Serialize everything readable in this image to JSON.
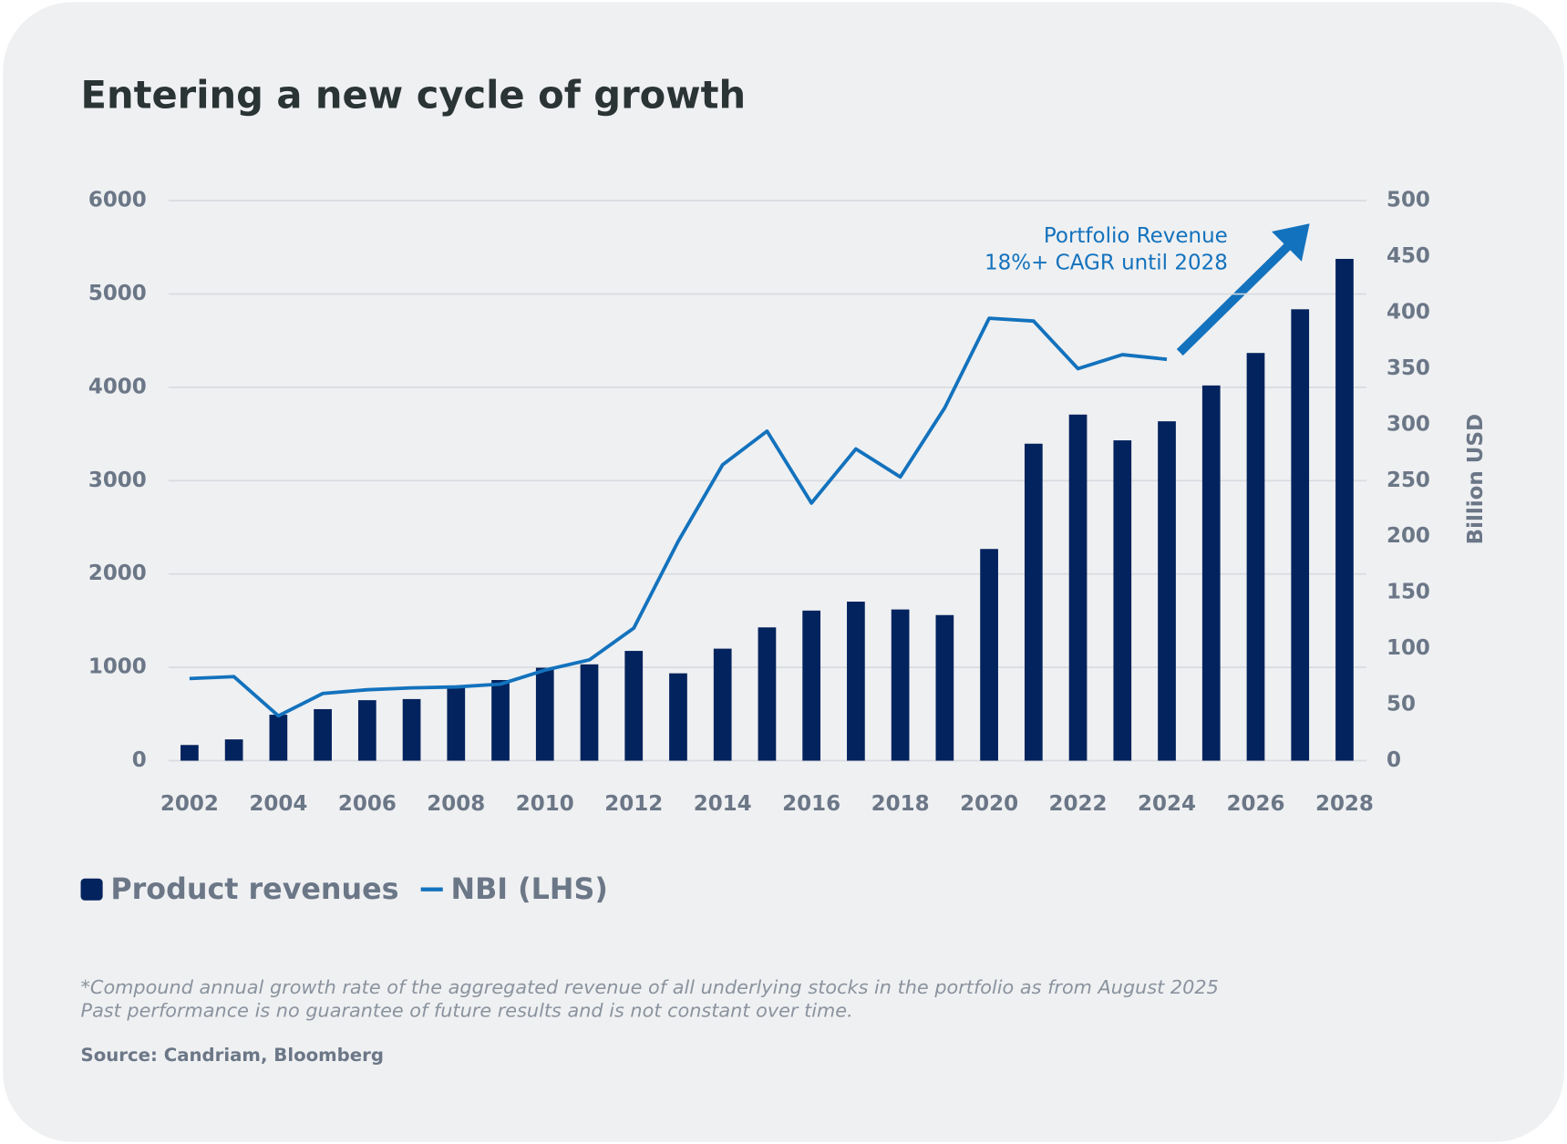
{
  "chart_data": {
    "type": "bar",
    "title": "Entering a new cycle of growth",
    "y2_label": "Billion USD",
    "categories": [
      "2002",
      null,
      "2004",
      null,
      "2006",
      null,
      "2008",
      null,
      "2010",
      null,
      "2012",
      null,
      "2014",
      null,
      "2016",
      null,
      "2018",
      null,
      "2020",
      null,
      "2022",
      null,
      "2024",
      null,
      "2026",
      null,
      "2028"
    ],
    "series": [
      {
        "name": "Product revenues",
        "type": "bar",
        "axis": "y2",
        "color": "#03235e",
        "values": [
          14,
          19,
          41,
          46,
          54,
          55,
          66,
          72,
          83,
          86,
          98,
          78,
          100,
          119,
          134,
          142,
          135,
          130,
          189,
          283,
          309,
          286,
          303,
          335,
          364,
          403,
          448
        ]
      },
      {
        "name": "NBI (LHS)",
        "type": "line",
        "axis": "y",
        "color": "#1372bd",
        "values": [
          880,
          900,
          480,
          720,
          760,
          780,
          790,
          820,
          970,
          1080,
          1420,
          2350,
          3170,
          3530,
          2760,
          3340,
          3040,
          3780,
          4740,
          4710,
          4200,
          4350,
          4300,
          null,
          null,
          null,
          null
        ]
      }
    ],
    "ylim": [
      0,
      6000
    ],
    "yticks": [
      0,
      1000,
      2000,
      3000,
      4000,
      5000,
      6000
    ],
    "y2lim": [
      0,
      500
    ],
    "y2ticks": [
      0,
      50,
      100,
      150,
      200,
      250,
      300,
      350,
      400,
      450,
      500
    ],
    "grid": true,
    "annotation": [
      "Portfolio Revenue",
      "18%+ CAGR until 2028"
    ],
    "footnotes": [
      "*Compound annual growth rate of the aggregated revenue of all underlying stocks in the portfolio as from August 2025",
      "Past performance is no guarantee of future results and is not constant over time."
    ],
    "source": "Source: Candriam, Bloomberg"
  }
}
